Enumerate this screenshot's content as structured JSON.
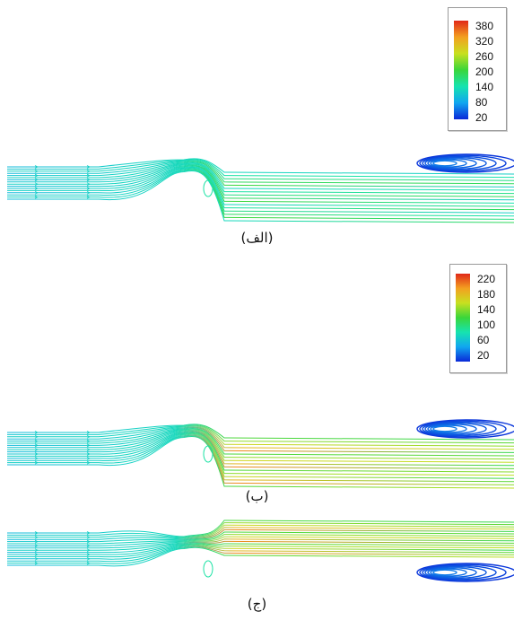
{
  "colormap": {
    "stops": [
      "#0a28d8",
      "#11a6f0",
      "#16e3b0",
      "#3ad63a",
      "#c8e020",
      "#f3a020",
      "#e02818"
    ]
  },
  "panels": [
    {
      "caption": "(الف)",
      "legend_ticks": [
        "380",
        "320",
        "260",
        "200",
        "140",
        "80",
        "20"
      ],
      "recirculation": "upper",
      "peak_level": 0.55
    },
    {
      "caption": "(ب)",
      "legend_ticks": [
        "220",
        "180",
        "140",
        "100",
        "60",
        "20"
      ],
      "recirculation": "upper",
      "peak_level": 0.95
    },
    {
      "caption": "(ج)",
      "legend_ticks": [],
      "recirculation": "lower",
      "peak_level": 0.95
    }
  ]
}
